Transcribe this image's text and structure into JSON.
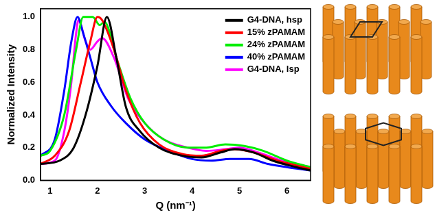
{
  "chart_data": {
    "type": "line",
    "x_label": "Q (nm⁻¹)",
    "y_label": "Normalized Intensity",
    "xlim": [
      0.8,
      6.5
    ],
    "ylim": [
      0,
      1.05
    ],
    "xticks": [
      1,
      2,
      3,
      4,
      5,
      6
    ],
    "yticks": [
      {
        "value": 0,
        "label": "0.0"
      },
      0.2,
      0.4,
      0.6,
      0.8,
      {
        "value": 1,
        "label": "1.0"
      }
    ],
    "grid": false,
    "legend": "upper right",
    "series": [
      {
        "name": "G4-DNA, hsp",
        "color": "#000000",
        "x": [
          0.8,
          1.2,
          1.5,
          1.75,
          2.0,
          2.2,
          2.4,
          2.6,
          2.9,
          3.3,
          3.8,
          4.2,
          4.6,
          4.9,
          5.3,
          5.7,
          6.2,
          6.5
        ],
        "values": [
          0.1,
          0.12,
          0.2,
          0.4,
          0.7,
          1.0,
          0.75,
          0.45,
          0.3,
          0.2,
          0.15,
          0.14,
          0.17,
          0.19,
          0.17,
          0.12,
          0.08,
          0.06
        ]
      },
      {
        "name": "15% zPAMAM",
        "color": "#ff0000",
        "x": [
          0.8,
          1.1,
          1.4,
          1.65,
          1.85,
          2.0,
          2.1,
          2.35,
          2.6,
          2.9,
          3.3,
          3.8,
          4.2,
          4.6,
          4.9,
          5.3,
          5.8,
          6.5
        ],
        "values": [
          0.1,
          0.15,
          0.3,
          0.6,
          0.85,
          1.0,
          0.98,
          0.8,
          0.55,
          0.35,
          0.22,
          0.16,
          0.15,
          0.18,
          0.19,
          0.17,
          0.12,
          0.07
        ]
      },
      {
        "name": "24% zPAMAM",
        "color": "#00ee00",
        "x": [
          0.8,
          1.0,
          1.3,
          1.55,
          1.7,
          1.9,
          2.05,
          2.15,
          2.4,
          2.7,
          3.0,
          3.4,
          3.9,
          4.3,
          4.7,
          5.1,
          5.5,
          6.0,
          6.5
        ],
        "values": [
          0.15,
          0.18,
          0.4,
          0.8,
          1.0,
          1.0,
          0.95,
          0.97,
          0.75,
          0.5,
          0.35,
          0.25,
          0.2,
          0.2,
          0.22,
          0.21,
          0.18,
          0.12,
          0.08
        ]
      },
      {
        "name": "40% zPAMAM",
        "color": "#0000ff",
        "x": [
          0.8,
          1.1,
          1.3,
          1.45,
          1.58,
          1.7,
          1.85,
          2.0,
          2.3,
          2.6,
          3.0,
          3.5,
          4.0,
          4.4,
          4.8,
          5.2,
          5.6,
          6.0,
          6.5
        ],
        "values": [
          0.15,
          0.25,
          0.55,
          0.85,
          1.0,
          0.9,
          0.75,
          0.6,
          0.45,
          0.35,
          0.25,
          0.18,
          0.13,
          0.12,
          0.13,
          0.13,
          0.1,
          0.08,
          0.06
        ]
      },
      {
        "name": "G4-DNA, lsp",
        "color": "#ff00ff",
        "x": [
          0.8,
          1.1,
          1.3,
          1.45,
          1.55,
          1.6,
          1.75,
          1.85,
          2.0,
          2.1,
          2.35,
          2.65,
          3.0,
          3.4,
          3.9,
          4.3,
          4.7,
          5.0,
          5.4,
          5.9,
          6.5
        ],
        "values": [
          0.1,
          0.12,
          0.3,
          0.6,
          0.9,
          0.98,
          0.85,
          0.8,
          0.85,
          0.87,
          0.75,
          0.5,
          0.35,
          0.25,
          0.2,
          0.18,
          0.19,
          0.2,
          0.17,
          0.12,
          0.08
        ]
      }
    ]
  }
}
